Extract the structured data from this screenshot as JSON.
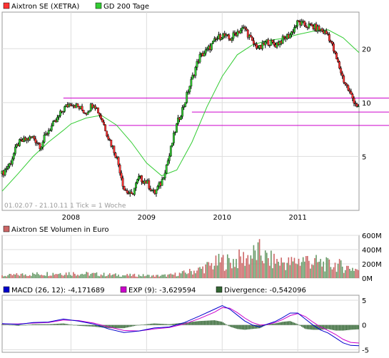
{
  "chart_data": [
    {
      "type": "candlestick",
      "panel": "price",
      "legend": [
        {
          "label": "Aixtron SE (XETRA)",
          "color": "#ff3333"
        },
        {
          "label": "GD 200 Tage",
          "color": "#33cc33"
        }
      ],
      "scale": "log",
      "ylim": [
        2.5,
        32
      ],
      "yticks": [
        "20",
        "10",
        "5"
      ],
      "ytick_values": [
        20,
        10,
        5
      ],
      "xticks": [
        "2008",
        "2009",
        "2010",
        "2011"
      ],
      "xtick_values": [
        2008,
        2009,
        2010,
        2011
      ],
      "xlim": [
        2007.09,
        2011.81
      ],
      "footnote": "01.02.07 - 21.10.11   1 Tick = 1 Woche",
      "hlines": [
        10.6,
        8.85,
        7.45
      ],
      "hline_color": "#cc00cc",
      "price_series": {
        "x": [
          2007.09,
          2007.2,
          2007.3,
          2007.4,
          2007.5,
          2007.6,
          2007.7,
          2007.8,
          2007.9,
          2008.0,
          2008.1,
          2008.2,
          2008.3,
          2008.4,
          2008.5,
          2008.6,
          2008.7,
          2008.8,
          2008.9,
          2009.0,
          2009.1,
          2009.2,
          2009.3,
          2009.4,
          2009.5,
          2009.6,
          2009.7,
          2009.8,
          2009.9,
          2010.0,
          2010.1,
          2010.2,
          2010.3,
          2010.4,
          2010.5,
          2010.6,
          2010.7,
          2010.8,
          2010.9,
          2011.0,
          2011.1,
          2011.2,
          2011.3,
          2011.4,
          2011.5,
          2011.6,
          2011.7,
          2011.81
        ],
        "y": [
          4.0,
          4.6,
          5.9,
          6.2,
          6.4,
          5.7,
          7.0,
          7.8,
          9.2,
          10.0,
          9.4,
          8.8,
          10.0,
          8.2,
          6.3,
          5.0,
          3.3,
          3.0,
          3.8,
          3.6,
          3.1,
          3.6,
          5.0,
          7.5,
          9.8,
          13.5,
          18.0,
          19.5,
          22.0,
          24.0,
          22.5,
          25.0,
          26.0,
          21.5,
          20.0,
          22.0,
          21.0,
          22.5,
          24.0,
          28.0,
          27.0,
          26.5,
          25.5,
          24.0,
          18.0,
          13.5,
          11.0,
          9.2
        ]
      },
      "ma_series": {
        "x": [
          2007.09,
          2007.3,
          2007.5,
          2007.7,
          2007.9,
          2008.0,
          2008.2,
          2008.4,
          2008.6,
          2008.8,
          2009.0,
          2009.2,
          2009.4,
          2009.6,
          2009.8,
          2010.0,
          2010.2,
          2010.4,
          2010.6,
          2010.8,
          2011.0,
          2011.2,
          2011.4,
          2011.6,
          2011.81
        ],
        "y": [
          3.2,
          4.0,
          5.0,
          6.0,
          7.0,
          7.6,
          8.2,
          8.5,
          7.5,
          6.0,
          4.6,
          3.9,
          4.2,
          6.0,
          9.5,
          14.0,
          18.5,
          21.0,
          22.2,
          22.8,
          24.0,
          25.0,
          25.5,
          23.0,
          19.0
        ]
      }
    },
    {
      "type": "bar",
      "panel": "volume",
      "legend": [
        {
          "label": "Aixtron SE Volumen in Euro",
          "color": "#cc6666"
        }
      ],
      "yticks": [
        "600M",
        "400M",
        "200M",
        "0M"
      ],
      "ytick_values": [
        600,
        400,
        200,
        0
      ],
      "ylim": [
        0,
        600
      ],
      "unit": "M EUR",
      "series": {
        "x": [
          2007.1,
          2007.3,
          2007.5,
          2007.7,
          2007.9,
          2008.1,
          2008.3,
          2008.5,
          2008.7,
          2008.9,
          2009.1,
          2009.3,
          2009.5,
          2009.7,
          2009.9,
          2010.0,
          2010.1,
          2010.2,
          2010.3,
          2010.4,
          2010.5,
          2010.6,
          2010.7,
          2010.8,
          2010.9,
          2011.0,
          2011.1,
          2011.2,
          2011.3,
          2011.4,
          2011.5,
          2011.6,
          2011.7,
          2011.8
        ],
        "values": [
          40,
          60,
          70,
          80,
          90,
          80,
          70,
          60,
          50,
          50,
          40,
          50,
          90,
          150,
          250,
          300,
          280,
          320,
          350,
          400,
          450,
          320,
          300,
          280,
          260,
          300,
          330,
          280,
          260,
          230,
          240,
          200,
          180,
          150
        ]
      }
    },
    {
      "type": "line",
      "panel": "macd",
      "legend": [
        {
          "label": "MACD (26, 12): -4,171689",
          "color": "#0000cc"
        },
        {
          "label": "EXP (9): -3,629594",
          "color": "#cc00cc"
        },
        {
          "label": "Divergence: -0,542096",
          "color": "#336633"
        }
      ],
      "yticks": [
        "5",
        "0",
        "-5"
      ],
      "ytick_values": [
        5,
        0,
        -5
      ],
      "ylim": [
        -5.5,
        6
      ],
      "macd": {
        "x": [
          2007.09,
          2007.3,
          2007.5,
          2007.7,
          2007.9,
          2008.1,
          2008.3,
          2008.5,
          2008.7,
          2008.9,
          2009.1,
          2009.3,
          2009.5,
          2009.7,
          2009.9,
          2010.0,
          2010.1,
          2010.2,
          2010.3,
          2010.4,
          2010.5,
          2010.6,
          2010.7,
          2010.8,
          2010.9,
          2011.0,
          2011.1,
          2011.2,
          2011.3,
          2011.4,
          2011.5,
          2011.6,
          2011.7,
          2011.81
        ],
        "y": [
          0.3,
          0.1,
          0.5,
          0.6,
          1.2,
          0.8,
          0.2,
          -0.8,
          -1.5,
          -1.2,
          -0.6,
          -0.4,
          0.5,
          1.8,
          3.2,
          3.9,
          3.2,
          2.0,
          0.8,
          0.0,
          -0.4,
          0.2,
          0.7,
          1.5,
          2.4,
          2.4,
          1.2,
          0.0,
          -1.0,
          -1.6,
          -2.6,
          -3.6,
          -4.1,
          -4.17
        ]
      },
      "signal": {
        "x": [
          2007.09,
          2007.3,
          2007.5,
          2007.7,
          2007.9,
          2008.1,
          2008.3,
          2008.5,
          2008.7,
          2008.9,
          2009.1,
          2009.3,
          2009.5,
          2009.7,
          2009.9,
          2010.0,
          2010.1,
          2010.2,
          2010.3,
          2010.4,
          2010.5,
          2010.6,
          2010.7,
          2010.8,
          2010.9,
          2011.0,
          2011.1,
          2011.2,
          2011.3,
          2011.4,
          2011.5,
          2011.6,
          2011.7,
          2011.81
        ],
        "y": [
          0.2,
          0.2,
          0.4,
          0.5,
          1.0,
          0.9,
          0.4,
          -0.4,
          -1.1,
          -1.2,
          -0.8,
          -0.5,
          0.2,
          1.3,
          2.6,
          3.5,
          3.4,
          2.5,
          1.4,
          0.5,
          0.0,
          0.1,
          0.5,
          1.1,
          1.9,
          2.3,
          1.7,
          0.6,
          -0.4,
          -1.1,
          -1.9,
          -2.9,
          -3.5,
          -3.63
        ]
      }
    }
  ]
}
